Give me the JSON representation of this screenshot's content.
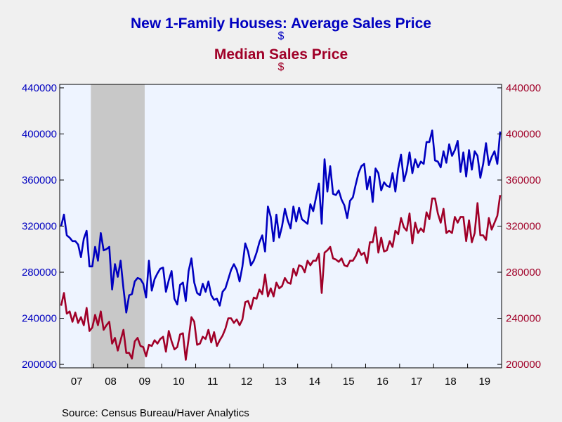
{
  "chart_data": {
    "type": "line",
    "title_line1": "New 1-Family Houses: Average Sales Price",
    "unit_line1": "$",
    "title_line2": "Median Sales Price",
    "unit_line2": "$",
    "source": "Source:  Census Bureau/Haver Analytics",
    "x_tick_labels": [
      "07",
      "08",
      "09",
      "10",
      "11",
      "12",
      "13",
      "14",
      "15",
      "16",
      "17",
      "18",
      "19"
    ],
    "y_ticks": [
      200000,
      240000,
      280000,
      320000,
      360000,
      400000,
      440000
    ],
    "y_tick_labels": [
      "200000",
      "240000",
      "280000",
      "320000",
      "360000",
      "400000",
      "440000"
    ],
    "ylim": [
      197000,
      443000
    ],
    "y2lim": [
      197000,
      443000
    ],
    "x_start": "Jan 2007",
    "x_end": "Dec 2019",
    "recession": {
      "start": "Dec 2007",
      "end": "Jun 2009",
      "color": "#c8c8c8"
    },
    "plot_background": "#eef4ff",
    "series": [
      {
        "name": "New 1-Family Houses: Average Sales Price",
        "axis": "left",
        "color": "#0000c0",
        "values": [
          320000,
          330000,
          312000,
          310000,
          307000,
          307000,
          304000,
          293000,
          309000,
          316000,
          285000,
          285000,
          302000,
          290000,
          314000,
          299000,
          300000,
          302000,
          265000,
          287000,
          276000,
          290000,
          266000,
          245000,
          260000,
          261000,
          272000,
          275000,
          274000,
          270000,
          258000,
          290000,
          264000,
          274000,
          279000,
          283000,
          284000,
          263000,
          273000,
          281000,
          257000,
          252000,
          269000,
          271000,
          255000,
          281000,
          292000,
          271000,
          262000,
          260000,
          270000,
          263000,
          272000,
          260000,
          256000,
          257000,
          251000,
          263000,
          266000,
          274000,
          282000,
          287000,
          282000,
          272000,
          285000,
          305000,
          298000,
          286000,
          290000,
          297000,
          306000,
          312000,
          298000,
          337000,
          328000,
          307000,
          330000,
          310000,
          320000,
          335000,
          325000,
          318000,
          337000,
          324000,
          336000,
          326000,
          324000,
          322000,
          339000,
          333000,
          345000,
          357000,
          322000,
          378000,
          350000,
          372000,
          348000,
          347000,
          351000,
          343000,
          338000,
          327000,
          342000,
          345000,
          356000,
          366000,
          372000,
          374000,
          352000,
          363000,
          341000,
          370000,
          366000,
          351000,
          358000,
          355000,
          354000,
          366000,
          350000,
          370000,
          382000,
          359000,
          368000,
          384000,
          366000,
          378000,
          371000,
          376000,
          374000,
          393000,
          393000,
          403000,
          377000,
          376000,
          371000,
          385000,
          375000,
          391000,
          381000,
          386000,
          394000,
          367000,
          384000,
          363000,
          386000,
          369000,
          385000,
          381000,
          362000,
          374000,
          392000,
          373000,
          380000,
          385000,
          374000,
          402000
        ]
      },
      {
        "name": "Median Sales Price",
        "axis": "right",
        "color": "#a00028",
        "values": [
          251000,
          262000,
          244000,
          246000,
          237000,
          245000,
          236000,
          241000,
          234000,
          249000,
          229000,
          232000,
          243000,
          234000,
          246000,
          230000,
          234000,
          237000,
          218000,
          223000,
          212000,
          221000,
          230000,
          210000,
          210000,
          205000,
          220000,
          223000,
          216000,
          215000,
          207000,
          217000,
          216000,
          221000,
          218000,
          222000,
          224000,
          211000,
          229000,
          220000,
          213000,
          215000,
          226000,
          227000,
          204000,
          222000,
          241000,
          237000,
          217000,
          218000,
          224000,
          222000,
          230000,
          219000,
          228000,
          216000,
          221000,
          225000,
          231000,
          240000,
          240000,
          236000,
          239000,
          234000,
          239000,
          254000,
          255000,
          248000,
          258000,
          257000,
          265000,
          261000,
          278000,
          259000,
          266000,
          259000,
          271000,
          266000,
          268000,
          275000,
          271000,
          270000,
          283000,
          277000,
          286000,
          285000,
          280000,
          290000,
          286000,
          290000,
          290000,
          296000,
          262000,
          297000,
          299000,
          302000,
          292000,
          291000,
          289000,
          292000,
          286000,
          285000,
          290000,
          290000,
          294000,
          300000,
          295000,
          297000,
          288000,
          306000,
          306000,
          319000,
          297000,
          310000,
          298000,
          299000,
          307000,
          302000,
          316000,
          313000,
          327000,
          319000,
          316000,
          331000,
          305000,
          323000,
          314000,
          318000,
          315000,
          332000,
          326000,
          344000,
          344000,
          331000,
          323000,
          335000,
          314000,
          316000,
          314000,
          328000,
          323000,
          328000,
          328000,
          307000,
          325000,
          306000,
          314000,
          340000,
          312000,
          312000,
          308000,
          327000,
          317000,
          323000,
          329000,
          347000
        ]
      }
    ]
  }
}
